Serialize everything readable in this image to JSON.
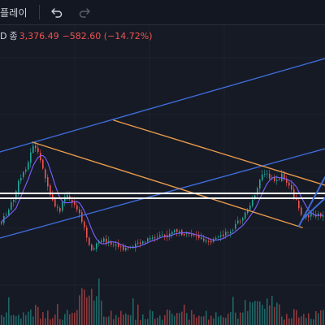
{
  "toolbar": {
    "replay_label": "플레이",
    "undo_icon": "undo-arrow-icon",
    "redo_icon": "redo-arrow-icon"
  },
  "legend": {
    "prefix": "D",
    "close_label": "종",
    "close_value": "3,376.49",
    "change": "−582.60 (−14.72%)"
  },
  "colors": {
    "background": "#161a25",
    "up": "#26a69a",
    "down": "#ef5350",
    "trendline_blue": "#3d6bd6",
    "trendline_orange": "#e89a4c",
    "horizontal_band": "#ffffff"
  },
  "chart_data": {
    "type": "candlestick",
    "has_volume": true,
    "has_moving_average": true,
    "grid": true,
    "drawings": [
      "blue ascending parallel channel",
      "orange descending parallel channel",
      "white horizontal double line",
      "blue rising wedge"
    ]
  }
}
